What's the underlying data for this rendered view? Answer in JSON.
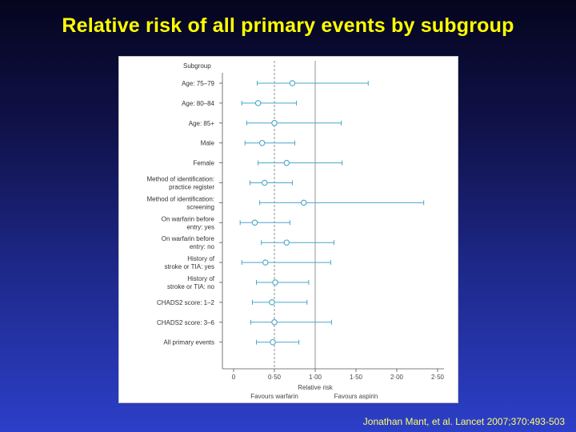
{
  "slide": {
    "title": "Relative risk of all primary events by subgroup",
    "citation": "Jonathan Mant, et al. Lancet 2007;370:493-503"
  },
  "colors": {
    "background_top": "#05051e",
    "background_bottom": "#2c3fc8",
    "title": "#ffff00",
    "citation": "#ffff66",
    "marker": "#4aa6c9",
    "axis": "#555555",
    "reference_line": "#888888"
  },
  "chart_data": {
    "type": "forest",
    "column_header": "Subgroup",
    "xlabel": "Relative risk",
    "xlim": [
      0,
      2.5
    ],
    "x_ticks": [
      {
        "value": 0,
        "label": "0"
      },
      {
        "value": 0.5,
        "label": "0·50"
      },
      {
        "value": 1.0,
        "label": "1·00"
      },
      {
        "value": 1.5,
        "label": "1·50"
      },
      {
        "value": 2.0,
        "label": "2·00"
      },
      {
        "value": 2.5,
        "label": "2·50"
      }
    ],
    "null_line": 1.0,
    "dashed_line": 0.5,
    "favours_left": "Favours warfarin",
    "favours_right": "Favours aspirin",
    "rows": [
      {
        "label": [
          "Age: 75–79"
        ],
        "estimate": 0.72,
        "lower": 0.29,
        "upper": 1.65
      },
      {
        "label": [
          "Age: 80–84"
        ],
        "estimate": 0.3,
        "lower": 0.1,
        "upper": 0.77
      },
      {
        "label": [
          "Age: 85+"
        ],
        "estimate": 0.5,
        "lower": 0.16,
        "upper": 1.32
      },
      {
        "label": [
          "Male"
        ],
        "estimate": 0.35,
        "lower": 0.14,
        "upper": 0.75
      },
      {
        "label": [
          "Female"
        ],
        "estimate": 0.65,
        "lower": 0.3,
        "upper": 1.33
      },
      {
        "label": [
          "Method of identification:",
          "practice register"
        ],
        "estimate": 0.38,
        "lower": 0.2,
        "upper": 0.72
      },
      {
        "label": [
          "Method of identification:",
          "screening"
        ],
        "estimate": 0.86,
        "lower": 0.32,
        "upper": 2.33
      },
      {
        "label": [
          "On warfarin before",
          "entry: yes"
        ],
        "estimate": 0.26,
        "lower": 0.08,
        "upper": 0.69
      },
      {
        "label": [
          "On warfarin before",
          "entry: no"
        ],
        "estimate": 0.65,
        "lower": 0.34,
        "upper": 1.23
      },
      {
        "label": [
          "History of",
          "stroke or TIA: yes"
        ],
        "estimate": 0.39,
        "lower": 0.1,
        "upper": 1.19
      },
      {
        "label": [
          "History of",
          "stroke or TIA: no"
        ],
        "estimate": 0.51,
        "lower": 0.28,
        "upper": 0.92
      },
      {
        "label": [
          "CHADS2 score: 1–2"
        ],
        "estimate": 0.47,
        "lower": 0.23,
        "upper": 0.9
      },
      {
        "label": [
          "CHADS2 score: 3–6"
        ],
        "estimate": 0.5,
        "lower": 0.21,
        "upper": 1.2
      },
      {
        "label": [
          "All primary events"
        ],
        "estimate": 0.48,
        "lower": 0.28,
        "upper": 0.8
      }
    ]
  }
}
